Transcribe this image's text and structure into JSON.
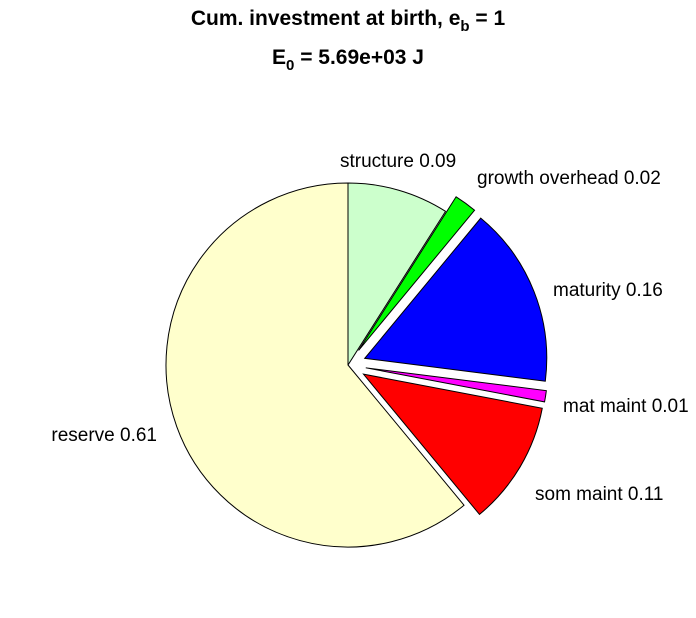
{
  "chart_data": {
    "type": "pie",
    "title": {
      "line1_prefix": "Cum. investment at birth, e",
      "line1_subscript": "b",
      "line1_suffix": " = 1",
      "line2_prefix": "E",
      "line2_subscript": "0",
      "line2_suffix": " = 5.69e+03 J"
    },
    "slices": [
      {
        "label": "structure 0.09",
        "value": 0.09,
        "color": "#ccffcc",
        "explode": false
      },
      {
        "label": "growth overhead 0.02",
        "value": 0.02,
        "color": "#00ff00",
        "explode": true
      },
      {
        "label": "maturity 0.16",
        "value": 0.16,
        "color": "#0000ff",
        "explode": true
      },
      {
        "label": "mat maint 0.01",
        "value": 0.01,
        "color": "#ff00ff",
        "explode": true
      },
      {
        "label": "som maint 0.11",
        "value": 0.11,
        "color": "#ff0000",
        "explode": true
      },
      {
        "label": "reserve 0.61",
        "value": 0.61,
        "color": "#ffffcc",
        "explode": false
      }
    ]
  }
}
